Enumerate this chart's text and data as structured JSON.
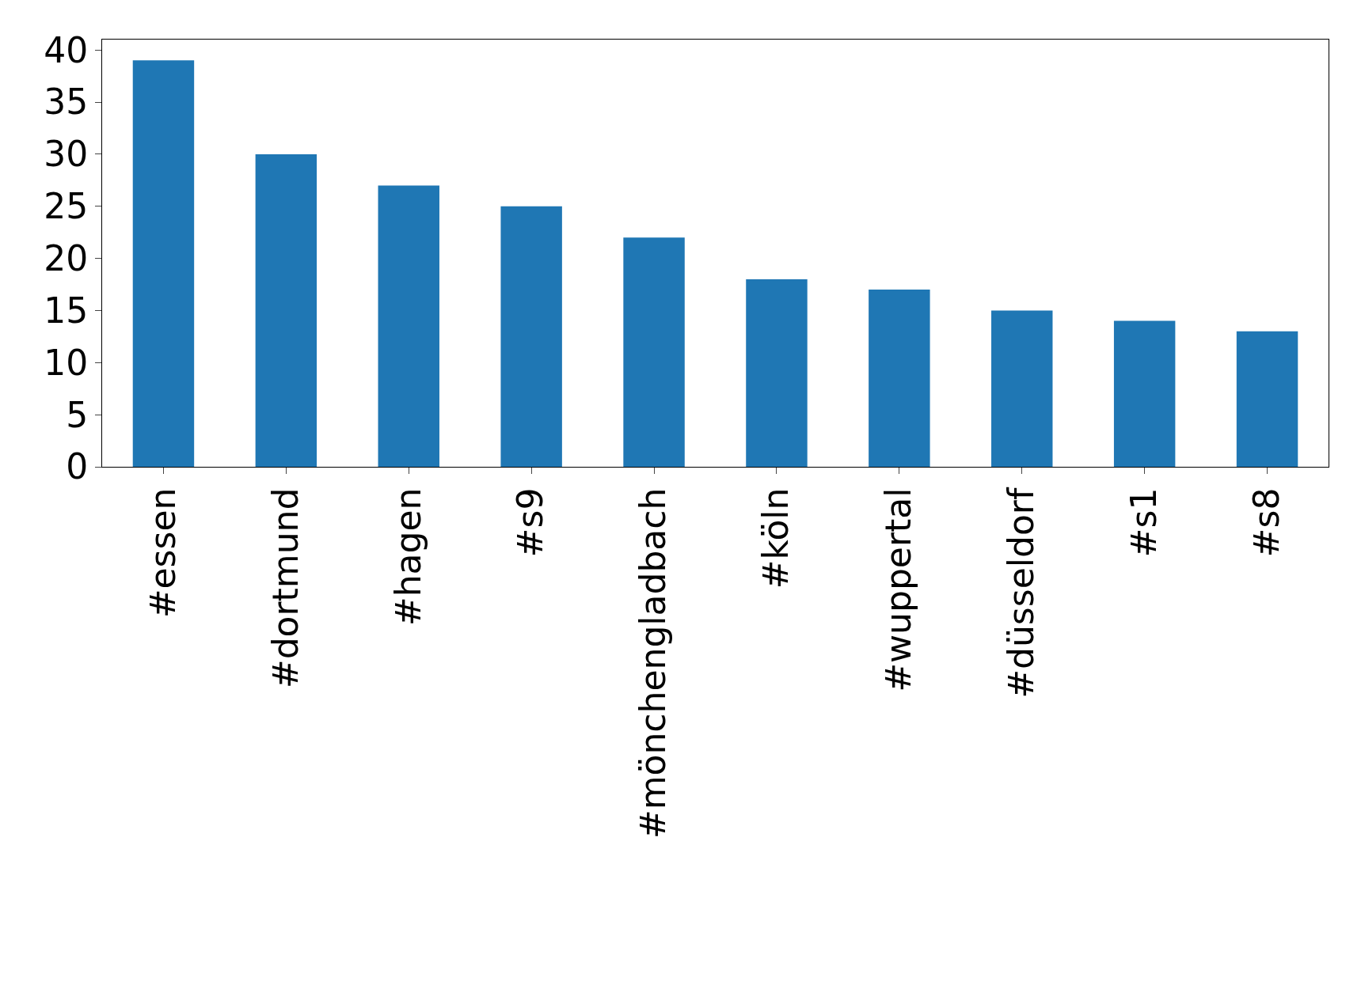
{
  "chart_data": {
    "type": "bar",
    "categories": [
      "#essen",
      "#dortmund",
      "#hagen",
      "#s9",
      "#mönchengladbach",
      "#köln",
      "#wuppertal",
      "#düsseldorf",
      "#s1",
      "#s8"
    ],
    "values": [
      39,
      30,
      27,
      25,
      22,
      18,
      17,
      15,
      14,
      13
    ],
    "color": "#1f77b4",
    "ylim": [
      0,
      41
    ],
    "yticks": [
      0,
      5,
      10,
      15,
      20,
      25,
      30,
      35,
      40
    ],
    "grid": false,
    "legend": false
  }
}
